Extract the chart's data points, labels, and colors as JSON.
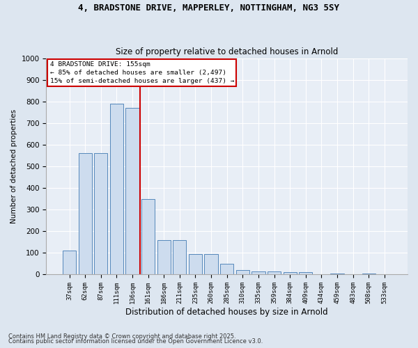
{
  "title1": "4, BRADSTONE DRIVE, MAPPERLEY, NOTTINGHAM, NG3 5SY",
  "title2": "Size of property relative to detached houses in Arnold",
  "xlabel": "Distribution of detached houses by size in Arnold",
  "ylabel": "Number of detached properties",
  "categories": [
    "37sqm",
    "62sqm",
    "87sqm",
    "111sqm",
    "136sqm",
    "161sqm",
    "186sqm",
    "211sqm",
    "235sqm",
    "260sqm",
    "285sqm",
    "310sqm",
    "335sqm",
    "359sqm",
    "384sqm",
    "409sqm",
    "434sqm",
    "459sqm",
    "483sqm",
    "508sqm",
    "533sqm"
  ],
  "values": [
    110,
    560,
    560,
    790,
    770,
    350,
    160,
    160,
    95,
    95,
    50,
    20,
    15,
    15,
    10,
    10,
    0,
    5,
    0,
    5,
    0
  ],
  "bar_color": "#cddcee",
  "bar_edge_color": "#5588bb",
  "vline_color": "#cc0000",
  "vline_pos": 4.5,
  "annotation_title": "4 BRADSTONE DRIVE: 155sqm",
  "annotation_line1": "← 85% of detached houses are smaller (2,497)",
  "annotation_line2": "15% of semi-detached houses are larger (437) →",
  "annotation_box_edge_color": "#cc0000",
  "ylim": [
    0,
    1000
  ],
  "yticks": [
    0,
    100,
    200,
    300,
    400,
    500,
    600,
    700,
    800,
    900,
    1000
  ],
  "footer1": "Contains HM Land Registry data © Crown copyright and database right 2025.",
  "footer2": "Contains public sector information licensed under the Open Government Licence v3.0.",
  "bg_color": "#dde6f0",
  "plot_bg_color": "#e8eef6"
}
